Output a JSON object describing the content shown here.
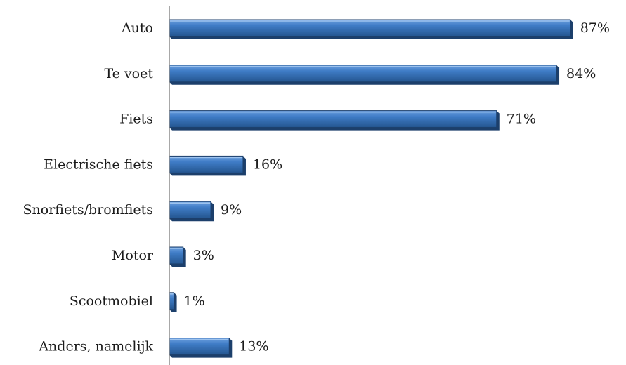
{
  "chart_data": {
    "type": "bar",
    "orientation": "horizontal",
    "categories": [
      "Auto",
      "Te voet",
      "Fiets",
      "Electrische fiets",
      "Snorfiets/bromfiets",
      "Motor",
      "Scootmobiel",
      "Anders, namelijk"
    ],
    "values": [
      87,
      84,
      71,
      16,
      9,
      3,
      1,
      13
    ],
    "value_labels": [
      "87%",
      "84%",
      "71%",
      "16%",
      "9%",
      "3%",
      "1%",
      "13%"
    ],
    "unit": "%",
    "xlim": [
      0,
      100
    ],
    "grid": false,
    "legend": "none",
    "colors": {
      "bar_light": "#6fa2e0",
      "bar_mid": "#3f7cc6",
      "bar_dark": "#24558f",
      "bar_edge": "#1c3f6b",
      "axis": "#8c8c8c"
    }
  }
}
